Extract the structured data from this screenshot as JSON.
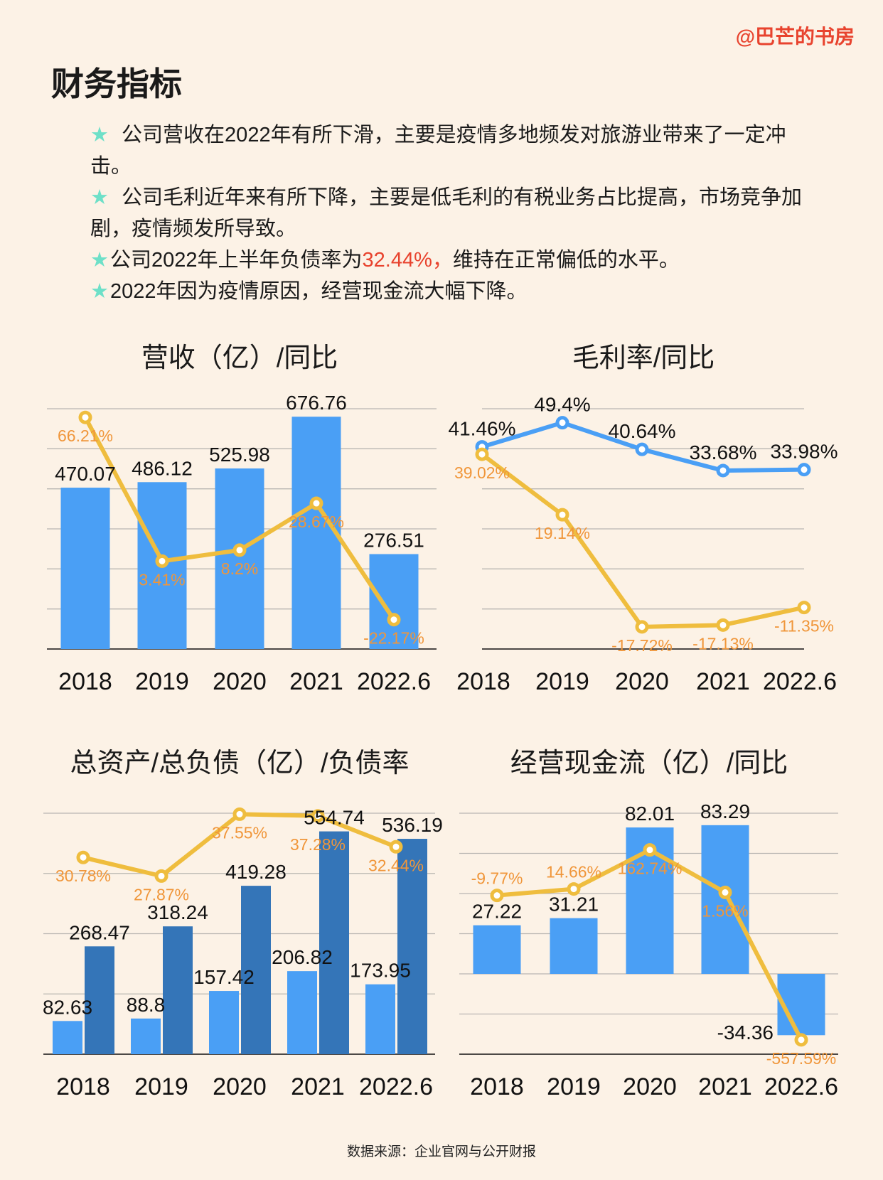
{
  "watermark": "@巴芒的书房",
  "title": "财务指标",
  "bullets": [
    {
      "star": "★",
      "text": " 公司营收在2022年有所下滑，主要是疫情多地频发对旅游业带来了一定冲击。"
    },
    {
      "star": "★",
      "text": " 公司毛利近年来有所下降，主要是低毛利的有税业务占比提高，市场竞争加剧，疫情频发所导致。"
    },
    {
      "star": "★",
      "pre": "公司2022年上半年负债率为",
      "highlight": "32.44%，",
      "post": "维持在正常偏低的水平。"
    },
    {
      "star": "★",
      "text": "2022年因为疫情原因，经营现金流大幅下降。"
    }
  ],
  "footer": "数据来源：企业官网与公开财报",
  "colors": {
    "background": "#fcf2e6",
    "bar": "#4a9ff5",
    "bar_dark": "#3475b8",
    "line": "#efbd3e",
    "line_label": "#f0963a",
    "line_blue": "#4a9ff5",
    "highlight": "#e8432e",
    "star": "#6ee0c8"
  },
  "chart_data": [
    {
      "type": "bar+line",
      "title": "营收（亿）/同比",
      "categories": [
        "2018",
        "2019",
        "2020",
        "2021",
        "2022.6"
      ],
      "series": [
        {
          "type": "bar",
          "axis": "left",
          "color": "#4a9ff5",
          "values": [
            470.07,
            486.12,
            525.98,
            676.76,
            276.51
          ]
        },
        {
          "type": "line",
          "axis": "right",
          "unit": "%",
          "color": "#efbd3e",
          "values": [
            66.21,
            3.41,
            8.2,
            28.67,
            -22.17
          ]
        }
      ],
      "ylim": [
        0,
        700
      ],
      "y2lim": [
        -35,
        70
      ],
      "grid": true
    },
    {
      "type": "line",
      "title": "毛利率/同比",
      "categories": [
        "2018",
        "2019",
        "2020",
        "2021",
        "2022.6"
      ],
      "series": [
        {
          "type": "line",
          "unit": "%",
          "color": "#4a9ff5",
          "values": [
            41.46,
            49.4,
            40.64,
            33.68,
            33.98
          ]
        },
        {
          "type": "line",
          "unit": "%",
          "color": "#efbd3e",
          "values": [
            39.02,
            19.14,
            -17.72,
            -17.13,
            -11.35
          ]
        }
      ],
      "ylim": [
        -25,
        54
      ],
      "grid": true
    },
    {
      "type": "bar+line",
      "title": "总资产/总负债（亿）/负债率",
      "categories": [
        "2018",
        "2019",
        "2020",
        "2021",
        "2022.6"
      ],
      "series": [
        {
          "type": "bar",
          "axis": "left",
          "color": "#4a9ff5",
          "values": [
            82.63,
            88.8,
            157.42,
            206.82,
            173.95
          ]
        },
        {
          "type": "bar",
          "axis": "left",
          "color": "#3475b8",
          "values": [
            268.47,
            318.24,
            419.28,
            554.74,
            536.19
          ]
        },
        {
          "type": "line",
          "axis": "right",
          "unit": "%",
          "color": "#efbd3e",
          "values": [
            30.78,
            27.87,
            37.55,
            37.28,
            32.44
          ]
        }
      ],
      "ylim": [
        0,
        600
      ],
      "y2lim": [
        0,
        37.7
      ],
      "grid": true
    },
    {
      "type": "bar+line",
      "title": "经营现金流（亿）/同比",
      "categories": [
        "2018",
        "2019",
        "2020",
        "2021",
        "2022.6"
      ],
      "series": [
        {
          "type": "bar",
          "axis": "left",
          "color": "#4a9ff5",
          "values": [
            27.22,
            31.21,
            82.01,
            83.29,
            -34.36
          ]
        },
        {
          "type": "line",
          "axis": "right",
          "unit": "%",
          "color": "#efbd3e",
          "values": [
            -9.77,
            14.66,
            162.74,
            1.56,
            -557.59
          ]
        }
      ],
      "ylim": [
        -45,
        90
      ],
      "y2lim": [
        -612,
        302
      ],
      "grid": true
    }
  ]
}
